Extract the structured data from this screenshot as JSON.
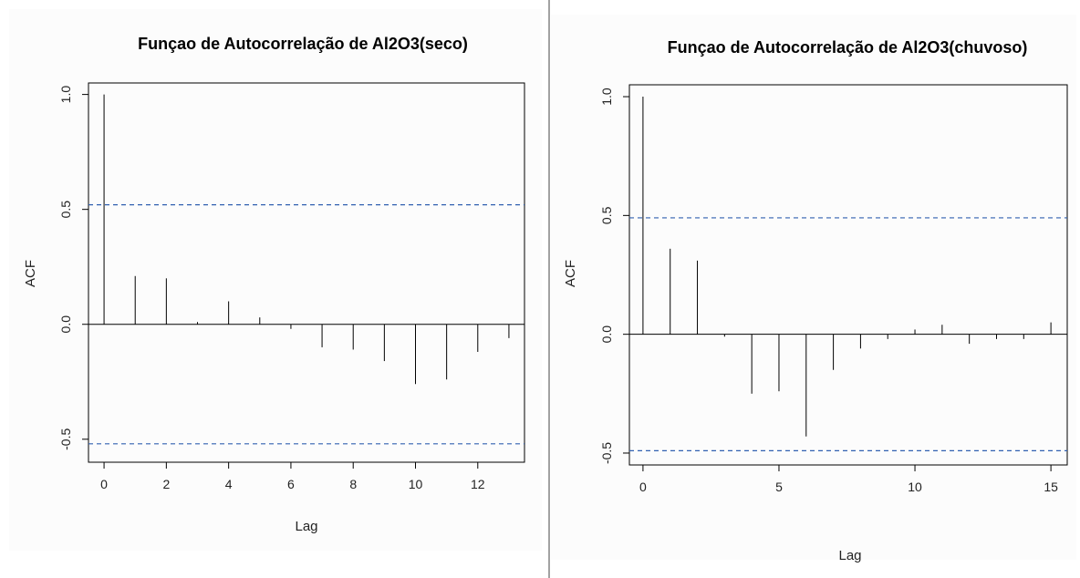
{
  "colors": {
    "ci_line": "#3060b0",
    "bars": "#000000",
    "background": "#fcfcfc"
  },
  "chart_data": [
    {
      "type": "bar",
      "subtype": "acf-stem",
      "title": "Funçao de Autocorrelação de Al2O3(seco)",
      "xlabel": "Lag",
      "ylabel": "ACF",
      "xlim": [
        -0.5,
        13.5
      ],
      "ylim": [
        -0.6,
        1.05
      ],
      "xticks": [
        0,
        2,
        4,
        6,
        8,
        10,
        12
      ],
      "xtick_labels": [
        "0",
        "2",
        "4",
        "6",
        "8",
        "10",
        "12"
      ],
      "yticks": [
        -0.5,
        0.0,
        0.5,
        1.0
      ],
      "ytick_labels": [
        "-0.5",
        "0.0",
        "0.5",
        "1.0"
      ],
      "lags": [
        0,
        1,
        2,
        3,
        4,
        5,
        6,
        7,
        8,
        9,
        10,
        11,
        12,
        13
      ],
      "values": [
        1.0,
        0.21,
        0.2,
        0.01,
        0.1,
        0.03,
        -0.02,
        -0.1,
        -0.11,
        -0.16,
        -0.26,
        -0.24,
        -0.12,
        -0.06
      ],
      "confidence_bounds": [
        0.52,
        -0.52
      ],
      "grid": false
    },
    {
      "type": "bar",
      "subtype": "acf-stem",
      "title": "Funçao de Autocorrelação de Al2O3(chuvoso)",
      "xlabel": "Lag",
      "ylabel": "ACF",
      "xlim": [
        -0.5,
        15.6
      ],
      "ylim": [
        -0.55,
        1.05
      ],
      "xticks": [
        0,
        5,
        10,
        15
      ],
      "xtick_labels": [
        "0",
        "5",
        "10",
        "15"
      ],
      "yticks": [
        -0.5,
        0.0,
        0.5,
        1.0
      ],
      "ytick_labels": [
        "-0.5",
        "0.0",
        "0.5",
        "1.0"
      ],
      "lags": [
        0,
        1,
        2,
        3,
        4,
        5,
        6,
        7,
        8,
        9,
        10,
        11,
        12,
        13,
        14,
        15
      ],
      "values": [
        1.0,
        0.36,
        0.31,
        -0.01,
        -0.25,
        -0.24,
        -0.43,
        -0.15,
        -0.06,
        -0.02,
        0.02,
        0.04,
        -0.04,
        -0.02,
        -0.02,
        0.05
      ],
      "confidence_bounds": [
        0.49,
        -0.49
      ],
      "grid": false
    }
  ]
}
